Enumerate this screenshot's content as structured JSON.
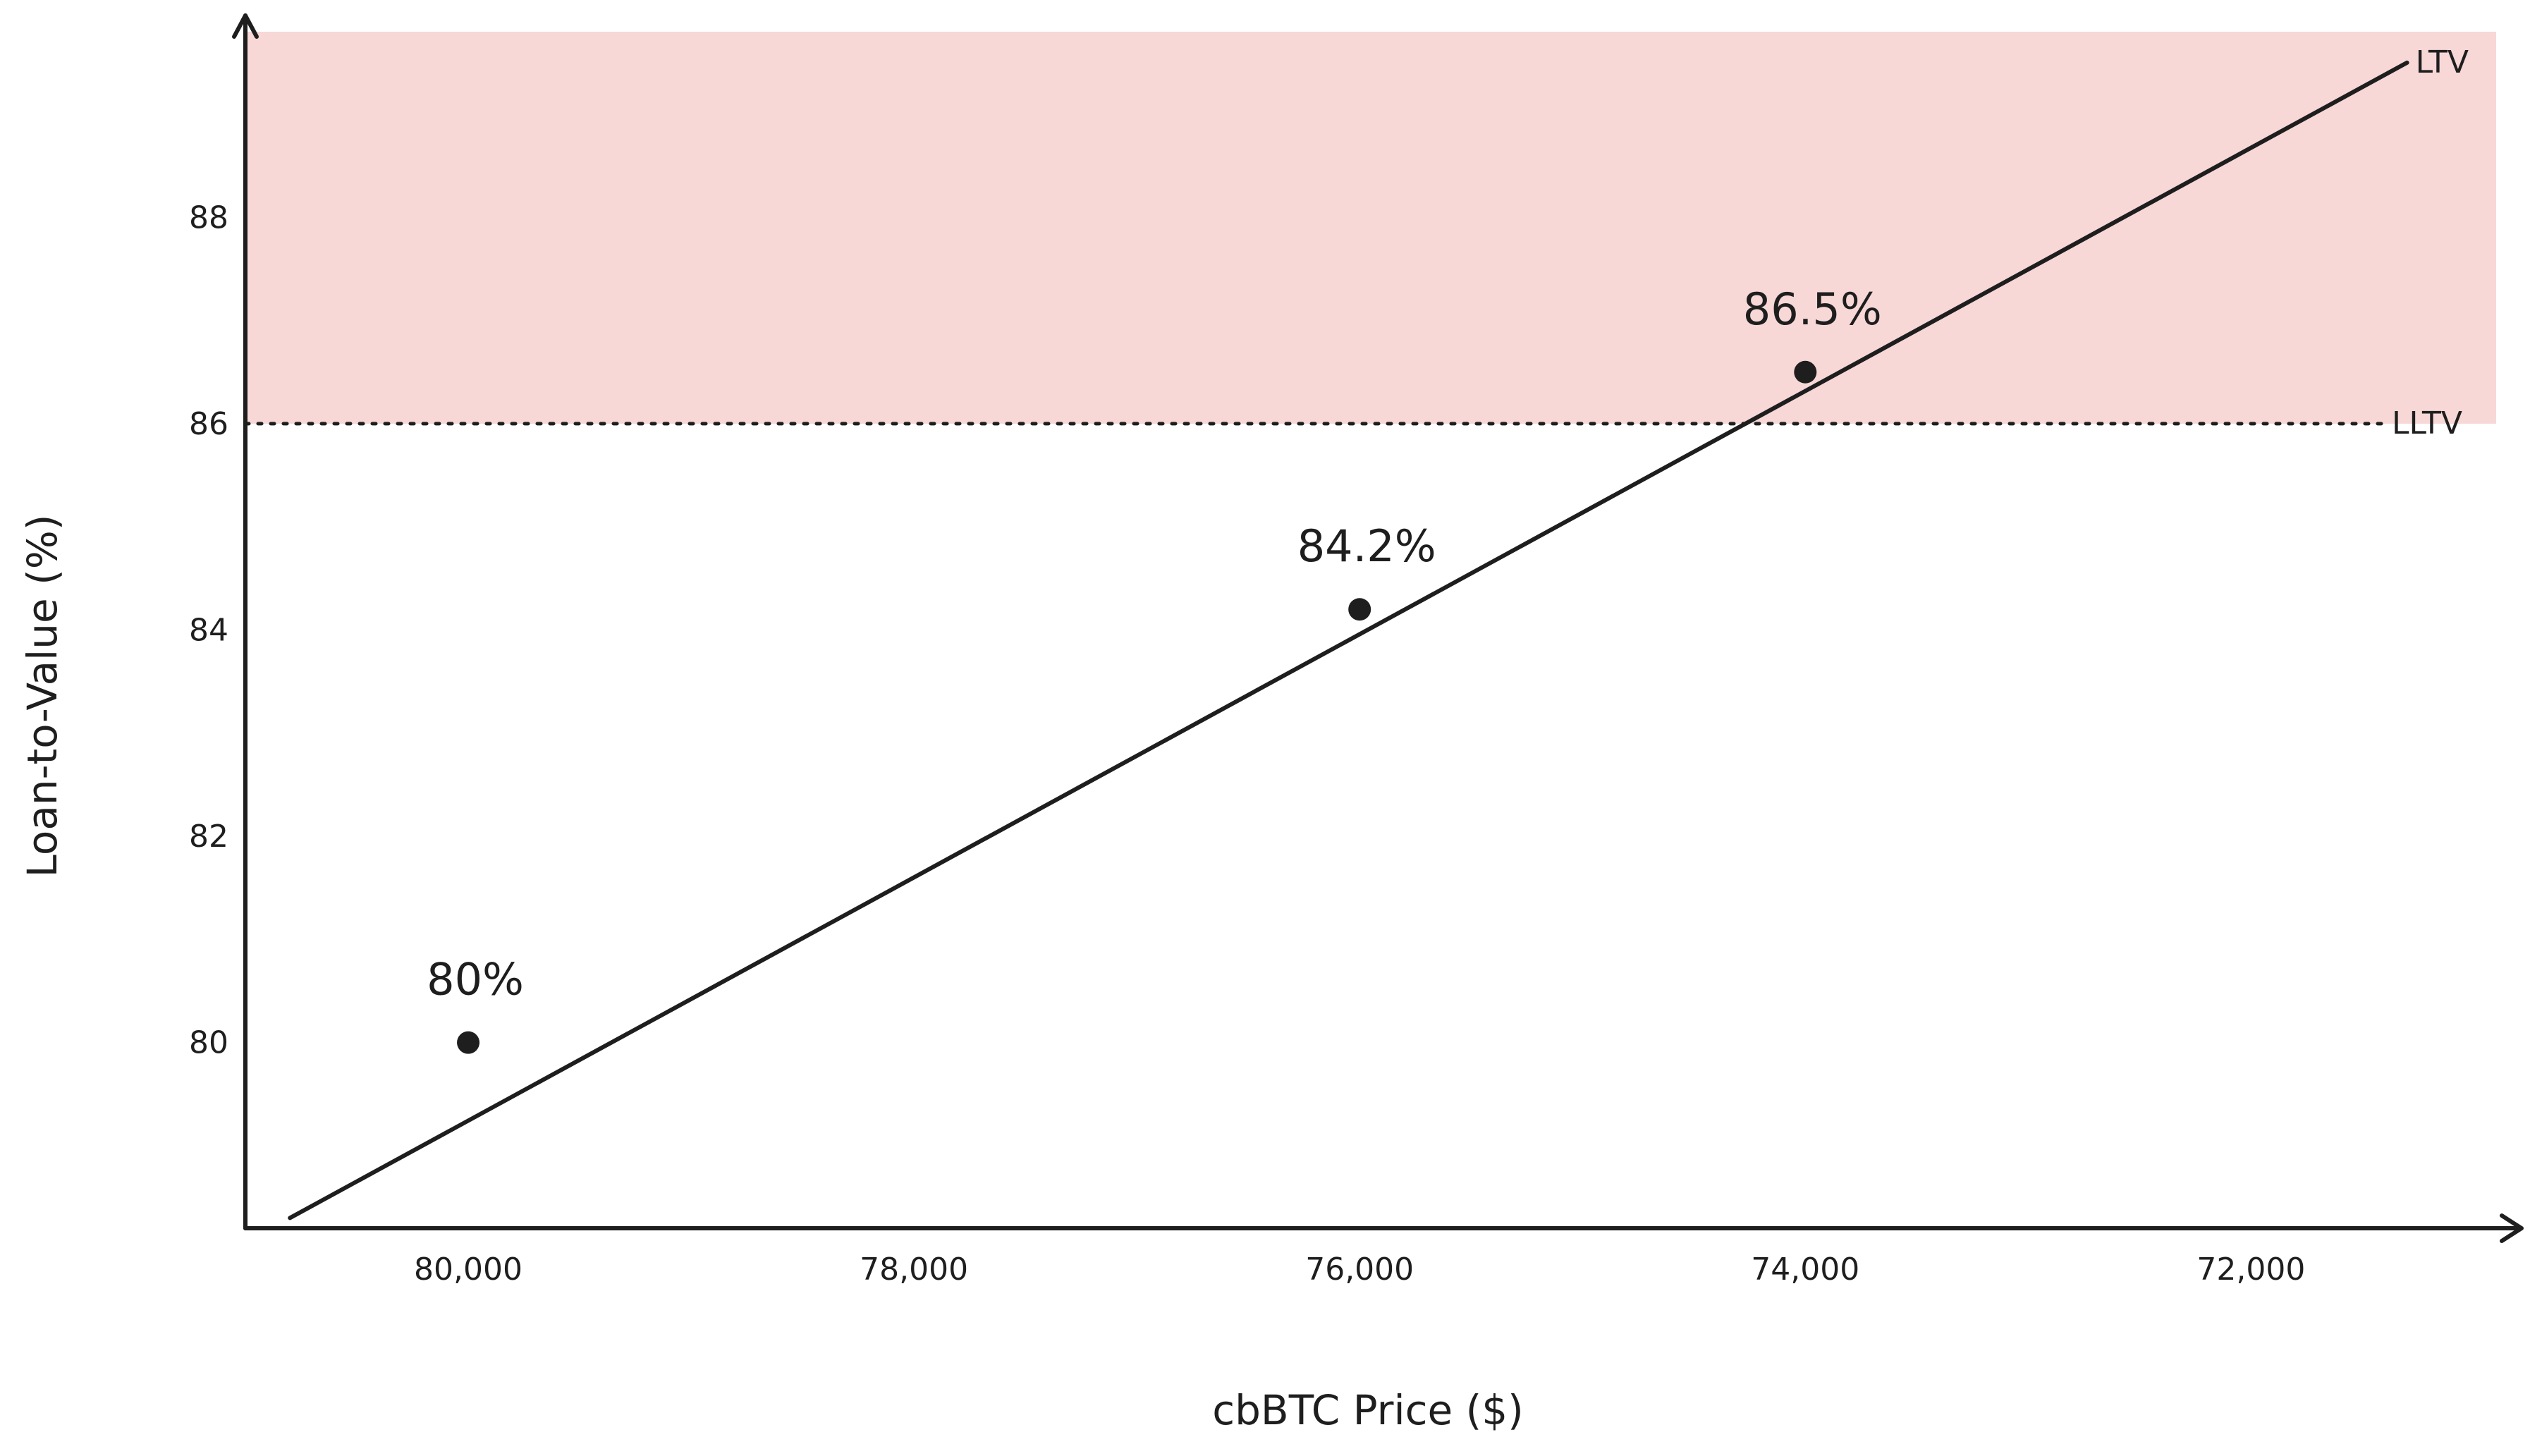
{
  "chart_data": {
    "type": "line",
    "title": "",
    "xlabel": "cbBTC Price ($)",
    "ylabel": "Loan-to-Value (%)",
    "x_reversed": true,
    "xlim": [
      81000,
      70900
    ],
    "ylim": [
      78.2,
      89.8
    ],
    "x_ticks": [
      80000,
      78000,
      76000,
      74000,
      72000
    ],
    "x_tick_labels": [
      "80,000",
      "78,000",
      "76,000",
      "74,000",
      "72,000"
    ],
    "y_ticks": [
      80,
      82,
      84,
      86,
      88
    ],
    "y_tick_labels": [
      "80",
      "82",
      "84",
      "86",
      "88"
    ],
    "grid": false,
    "series": [
      {
        "name": "LTV",
        "color": "#1e1e1e",
        "x": [
          80800,
          71300
        ],
        "y": [
          78.3,
          89.5
        ]
      }
    ],
    "points": [
      {
        "x": 80000,
        "y": 80.0,
        "label": "80%"
      },
      {
        "x": 76000,
        "y": 84.2,
        "label": "84.2%"
      },
      {
        "x": 74000,
        "y": 86.5,
        "label": "86.5%"
      }
    ],
    "threshold": {
      "name": "LLTV",
      "y": 86,
      "style": "dotted",
      "zone_color": "#f8d7d7"
    }
  }
}
